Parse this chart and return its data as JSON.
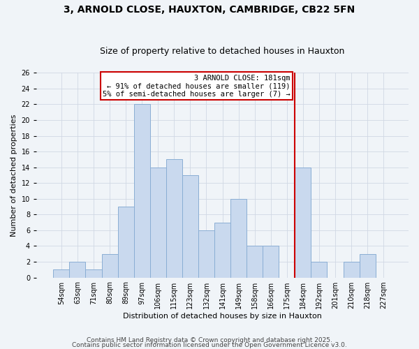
{
  "title": "3, ARNOLD CLOSE, HAUXTON, CAMBRIDGE, CB22 5FN",
  "subtitle": "Size of property relative to detached houses in Hauxton",
  "xlabel": "Distribution of detached houses by size in Hauxton",
  "ylabel": "Number of detached properties",
  "footer_line1": "Contains HM Land Registry data © Crown copyright and database right 2025.",
  "footer_line2": "Contains public sector information licensed under the Open Government Licence v3.0.",
  "bin_labels": [
    "54sqm",
    "63sqm",
    "71sqm",
    "80sqm",
    "89sqm",
    "97sqm",
    "106sqm",
    "115sqm",
    "123sqm",
    "132sqm",
    "141sqm",
    "149sqm",
    "158sqm",
    "166sqm",
    "175sqm",
    "184sqm",
    "192sqm",
    "201sqm",
    "210sqm",
    "218sqm",
    "227sqm"
  ],
  "bar_values": [
    1,
    2,
    1,
    3,
    9,
    22,
    14,
    15,
    13,
    6,
    7,
    10,
    4,
    4,
    0,
    14,
    2,
    0,
    2,
    3,
    0
  ],
  "bar_color": "#c9d9ee",
  "bar_edge_color": "#8aaed4",
  "ylim": [
    0,
    26
  ],
  "yticks": [
    0,
    2,
    4,
    6,
    8,
    10,
    12,
    14,
    16,
    18,
    20,
    22,
    24,
    26
  ],
  "vline_color": "#cc0000",
  "annotation_line1": "3 ARNOLD CLOSE: 181sqm",
  "annotation_line2": "← 91% of detached houses are smaller (119)",
  "annotation_line3": "5% of semi-detached houses are larger (7) →",
  "annotation_box_color": "#ffffff",
  "annotation_border_color": "#cc0000",
  "bg_color": "#f0f4f8",
  "grid_color": "#d0d8e4",
  "title_fontsize": 10,
  "subtitle_fontsize": 9,
  "axis_label_fontsize": 8,
  "tick_fontsize": 7,
  "footer_fontsize": 6.5,
  "annotation_fontsize": 7.5
}
